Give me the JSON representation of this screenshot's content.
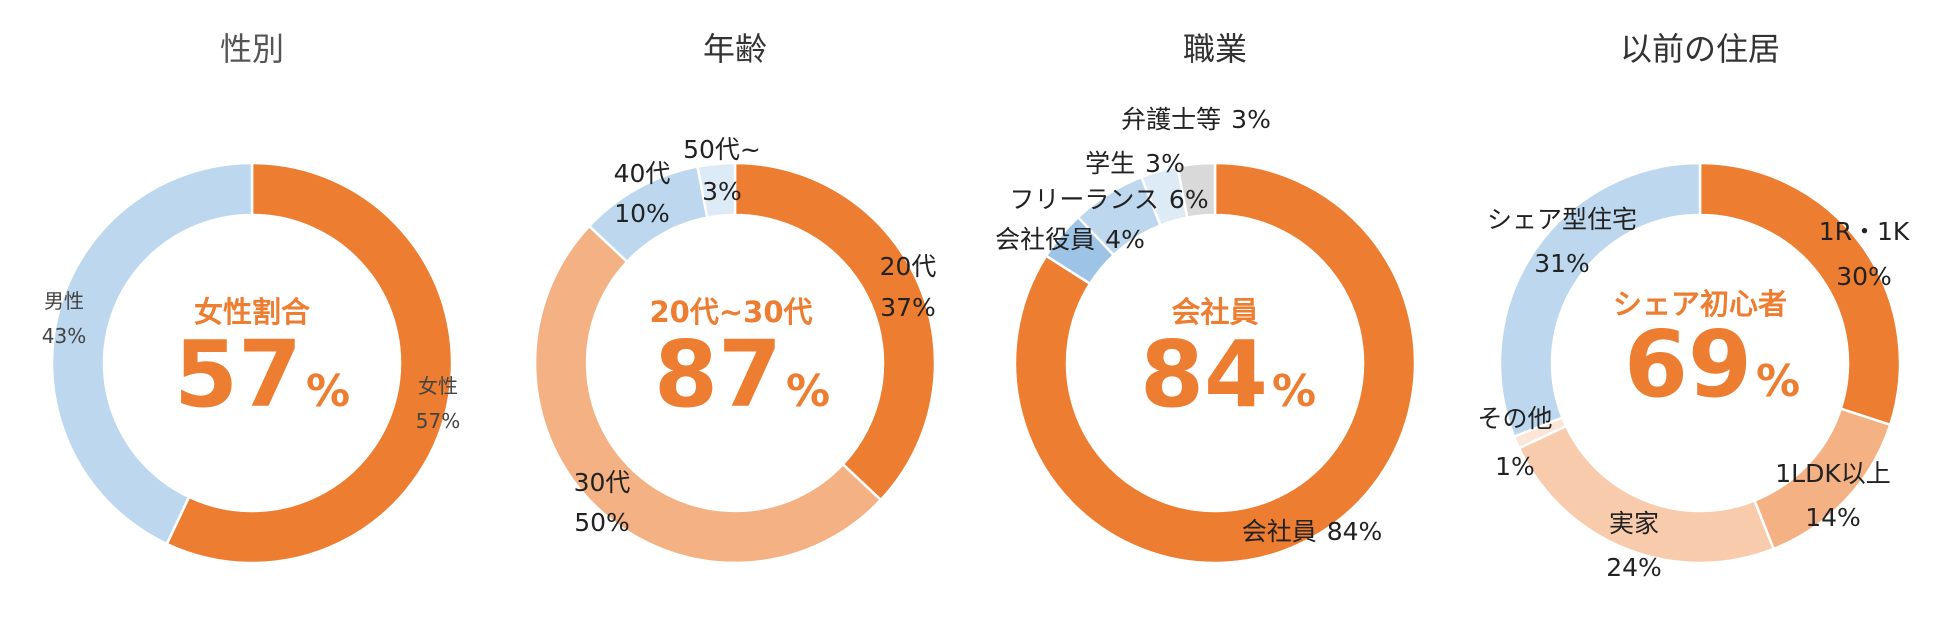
{
  "colors": {
    "accent": "#ED7D31"
  },
  "chart_data": [
    {
      "type": "pie",
      "title": "性別",
      "center": {
        "caption": "女性割合",
        "value": "57",
        "unit": "%"
      },
      "slices": [
        {
          "name": "女性",
          "value": 57,
          "percent_label": "57%",
          "color": "#ED7D31"
        },
        {
          "name": "男性",
          "value": 43,
          "percent_label": "43%",
          "color": "#BDD7EE"
        }
      ]
    },
    {
      "type": "pie",
      "title": "年齢",
      "center": {
        "caption": "20代~30代",
        "value": "87",
        "unit": "%"
      },
      "slices": [
        {
          "name": "20代",
          "value": 37,
          "percent_label": "37%",
          "color": "#ED7D31"
        },
        {
          "name": "30代",
          "value": 50,
          "percent_label": "50%",
          "color": "#F4B183"
        },
        {
          "name": "40代",
          "value": 10,
          "percent_label": "10%",
          "color": "#BDD7EE"
        },
        {
          "name": "50代~",
          "value": 3,
          "percent_label": "3%",
          "color": "#DDEBF7"
        }
      ]
    },
    {
      "type": "pie",
      "title": "職業",
      "center": {
        "caption": "会社員",
        "value": "84",
        "unit": "%"
      },
      "slices": [
        {
          "name": "会社員",
          "value": 84,
          "percent_label": "84%",
          "color": "#ED7D31"
        },
        {
          "name": "会社役員",
          "value": 4,
          "percent_label": "4%",
          "color": "#9DC3E6"
        },
        {
          "name": "フリーランス",
          "value": 6,
          "percent_label": "6%",
          "color": "#BDD7EE"
        },
        {
          "name": "学生",
          "value": 3,
          "percent_label": "3%",
          "color": "#DDEBF7"
        },
        {
          "name": "弁護士等",
          "value": 3,
          "percent_label": "3%",
          "color": "#D9D9D9"
        }
      ]
    },
    {
      "type": "pie",
      "title": "以前の住居",
      "center": {
        "caption": "シェア初心者",
        "value": "69",
        "unit": "%"
      },
      "slices": [
        {
          "name": "1R・1K",
          "value": 30,
          "percent_label": "30%",
          "color": "#ED7D31"
        },
        {
          "name": "1LDK以上",
          "value": 14,
          "percent_label": "14%",
          "color": "#F4B183"
        },
        {
          "name": "実家",
          "value": 24,
          "percent_label": "24%",
          "color": "#F8CBAD"
        },
        {
          "name": "その他",
          "value": 1,
          "percent_label": "1%",
          "color": "#FBE5D6"
        },
        {
          "name": "シェア型住宅",
          "value": 31,
          "percent_label": "31%",
          "color": "#BDD7EE"
        }
      ]
    }
  ]
}
